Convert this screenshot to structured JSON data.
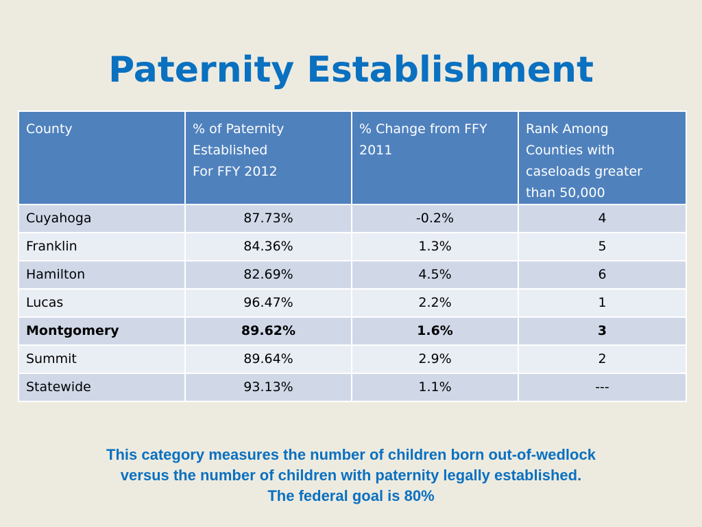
{
  "slide": {
    "title": "Paternity Establishment"
  },
  "table": {
    "headers": [
      "County",
      "% of Paternity\nEstablished\nFor FFY 2012",
      "% Change from FFY\n2011",
      "Rank Among\nCounties with\ncaseloads greater\nthan 50,000"
    ],
    "rows": [
      [
        "Cuyahoga",
        "87.73%",
        "-0.2%",
        "4"
      ],
      [
        "Franklin",
        "84.36%",
        "1.3%",
        "5"
      ],
      [
        "Hamilton",
        "82.69%",
        "4.5%",
        "6"
      ],
      [
        "Lucas",
        "96.47%",
        "2.2%",
        "1"
      ],
      [
        "Montgomery",
        "89.62%",
        "1.6%",
        "3"
      ],
      [
        "Summit",
        "89.64%",
        "2.9%",
        "2"
      ],
      [
        "Statewide",
        "93.13%",
        "1.1%",
        "---"
      ]
    ],
    "highlighted_row": "Montgomery"
  },
  "note": {
    "line1": "This category measures the number of children born out-of-wedlock",
    "line2": "versus the number of children with paternity legally established.",
    "line3": "The federal goal is 80%"
  },
  "colors": {
    "title": "#0a70c0",
    "header_bg": "#4f81bd",
    "row_odd_bg": "#d0d8e8",
    "row_even_bg": "#e9edf4",
    "background": "#edebe0"
  }
}
